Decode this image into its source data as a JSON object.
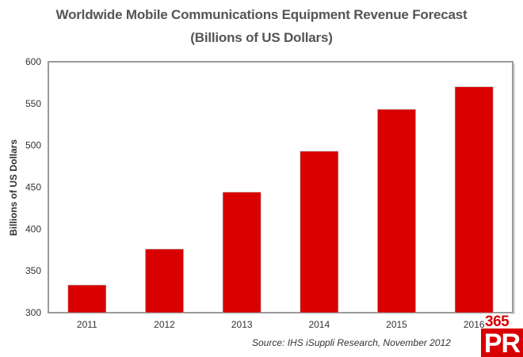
{
  "chart_data": {
    "type": "bar",
    "title": "Worldwide Mobile Communications Equipment Revenue Forecast",
    "subtitle": "(Billions of US Dollars)",
    "xlabel": "",
    "ylabel": "Billions of US Dollars",
    "categories": [
      "2011",
      "2012",
      "2013",
      "2014",
      "2015",
      "2016"
    ],
    "values": [
      333,
      376,
      444,
      493,
      543,
      570
    ],
    "ylim": [
      300,
      600
    ],
    "yticks": [
      300,
      350,
      400,
      450,
      500,
      550,
      600
    ],
    "grid": false,
    "legend": "none",
    "bar_color": "#d80000",
    "source": "Source: IHS iSuppli Research, November 2012"
  },
  "watermark": {
    "top_text": "365",
    "box_text": "PR",
    "color": "#d80000"
  }
}
